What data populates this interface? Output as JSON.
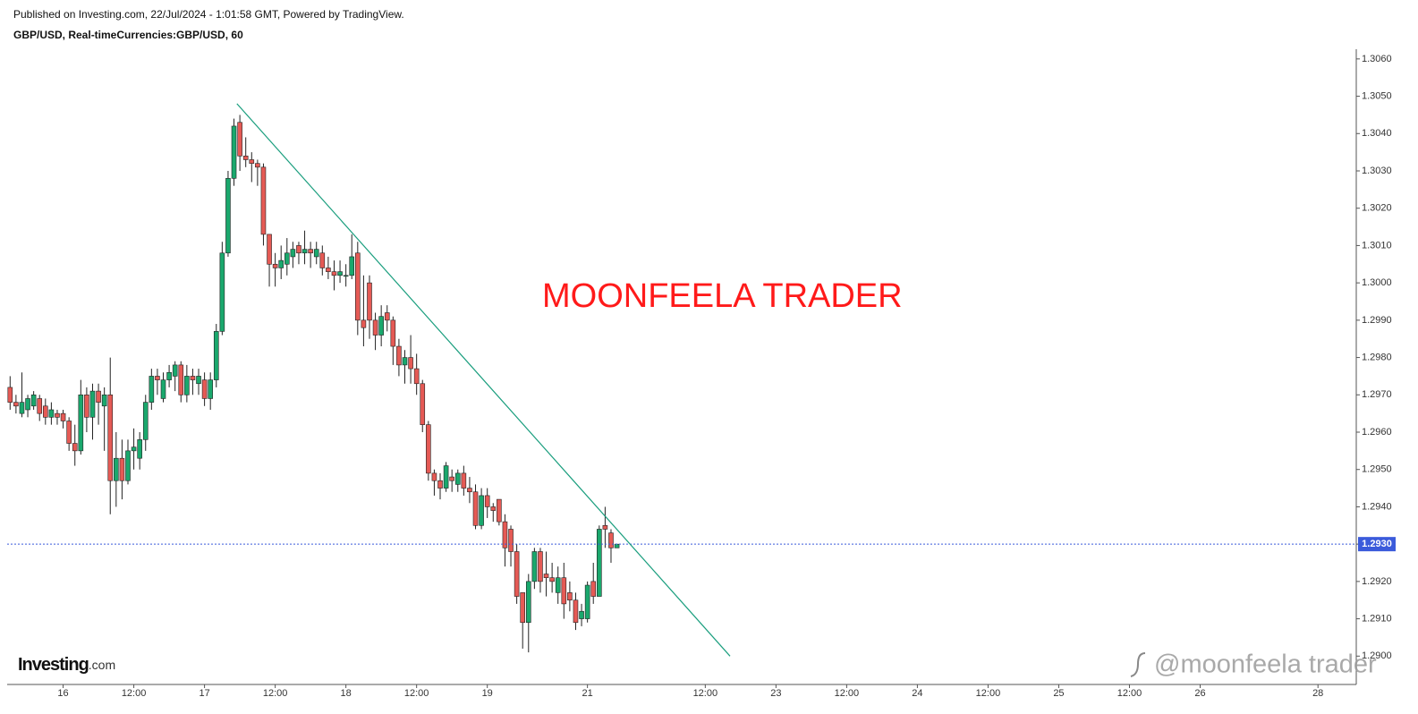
{
  "header": {
    "published": "Published on Investing.com, 22/Jul/2024 - 1:01:58 GMT, Powered by TradingView.",
    "symbol": "GBP/USD, Real-timeCurrencies:GBP/USD, 60"
  },
  "logo": {
    "name": "Investing",
    "suffix": ".com"
  },
  "watermark": "@moonfeela trader",
  "chart_data": {
    "type": "candlestick",
    "annotation": {
      "text": "MOONFEELA TRADER",
      "color": "#ff1a1a"
    },
    "trendline": {
      "x": [
        29.5,
        113.2
      ],
      "y": [
        1.3048,
        1.29
      ],
      "color": "#1a9e7e"
    },
    "price_line": {
      "value": 1.293,
      "label": "1.2930",
      "color": "#3b5bdb"
    },
    "up_color": "#1aa86d",
    "down_color": "#e55a55",
    "x": [
      -9,
      -8,
      -7,
      -6,
      -5,
      -4,
      -3,
      -2,
      -1,
      0,
      1,
      2,
      3,
      4,
      5,
      6,
      7,
      8,
      9,
      10,
      11,
      12,
      13,
      14,
      15,
      16,
      17,
      18,
      19,
      20,
      21,
      22,
      23,
      24,
      25,
      26,
      27,
      28,
      29,
      30,
      31,
      32,
      33,
      34,
      35,
      36,
      37,
      38,
      39,
      40,
      41,
      42,
      43,
      44,
      45,
      46,
      47,
      48,
      49,
      50,
      51,
      52,
      53,
      54,
      55,
      56,
      57,
      58,
      59,
      60,
      61,
      62,
      63,
      64,
      65,
      66,
      67,
      68,
      69,
      70,
      71,
      72,
      73,
      74,
      75,
      76,
      77,
      78,
      79,
      80,
      81,
      82,
      83,
      84,
      85,
      86,
      87,
      88,
      89,
      90,
      91,
      92,
      93,
      94
    ],
    "open": [
      1.2972,
      1.2968,
      1.2965,
      1.2966,
      1.2967,
      1.2969,
      1.2967,
      1.2964,
      1.2965,
      1.2965,
      1.2963,
      1.2957,
      1.2955,
      1.297,
      1.2964,
      1.2971,
      1.2967,
      1.297,
      1.2947,
      1.2953,
      1.2947,
      1.2955,
      1.2953,
      1.2958,
      1.2968,
      1.2975,
      1.2969,
      1.2974,
      1.2975,
      1.2978,
      1.297,
      1.2975,
      1.2973,
      1.2974,
      1.2969,
      1.2974,
      1.2987,
      1.3008,
      1.3028,
      1.3043,
      1.3034,
      1.3033,
      1.3032,
      1.3031,
      1.3013,
      1.3005,
      1.3004,
      1.3005,
      1.3007,
      1.301,
      1.3008,
      1.3009,
      1.3007,
      1.3008,
      1.3004,
      1.3003,
      1.3002,
      1.3002,
      1.3002,
      1.3008,
      1.299,
      1.3,
      1.299,
      1.2986,
      1.2992,
      1.299,
      1.2983,
      1.2978,
      1.298,
      1.2977,
      1.2973,
      1.2962,
      1.2949,
      1.2947,
      1.2945,
      1.2948,
      1.2946,
      1.2949,
      1.2945,
      1.2944,
      1.2935,
      1.2943,
      1.294,
      1.2942,
      1.2936,
      1.2934,
      1.2928,
      1.2917,
      1.2909,
      1.292,
      1.2928,
      1.2922,
      1.2921,
      1.2917,
      1.2921,
      1.2917,
      1.2915,
      1.291,
      1.291,
      1.292,
      1.2916,
      1.2935,
      1.2933,
      1.2929
    ],
    "high": [
      1.2975,
      1.297,
      1.2976,
      1.297,
      1.2971,
      1.297,
      1.2969,
      1.2968,
      1.2966,
      1.2966,
      1.2964,
      1.2962,
      1.2974,
      1.2972,
      1.2973,
      1.2973,
      1.2972,
      1.298,
      1.296,
      1.2958,
      1.2958,
      1.2961,
      1.296,
      1.297,
      1.2977,
      1.2977,
      1.2976,
      1.2978,
      1.2979,
      1.2979,
      1.2978,
      1.2977,
      1.2977,
      1.2976,
      1.2976,
      1.2989,
      1.3011,
      1.303,
      1.3044,
      1.3045,
      1.3039,
      1.3035,
      1.3033,
      1.3032,
      1.3013,
      1.3008,
      1.301,
      1.3012,
      1.3011,
      1.3011,
      1.3014,
      1.3011,
      1.3011,
      1.301,
      1.3007,
      1.3006,
      1.3006,
      1.3005,
      1.3013,
      1.3011,
      1.3002,
      1.3002,
      1.2992,
      1.2994,
      1.2994,
      1.2991,
      1.2985,
      1.2982,
      1.2986,
      1.2981,
      1.2974,
      1.2963,
      1.295,
      1.2949,
      1.2952,
      1.295,
      1.295,
      1.2951,
      1.2948,
      1.2946,
      1.2945,
      1.2945,
      1.2941,
      1.2942,
      1.2938,
      1.2935,
      1.293,
      1.2917,
      1.2922,
      1.2929,
      1.2929,
      1.2928,
      1.2925,
      1.2924,
      1.2925,
      1.292,
      1.2917,
      1.2914,
      1.292,
      1.2925,
      1.2935,
      1.294,
      1.2934,
      1.293
    ],
    "low": [
      1.2966,
      1.2965,
      1.2964,
      1.2964,
      1.2966,
      1.2963,
      1.2962,
      1.2962,
      1.2962,
      1.2961,
      1.2955,
      1.2951,
      1.2954,
      1.296,
      1.2958,
      1.2962,
      1.2955,
      1.2938,
      1.294,
      1.2942,
      1.2946,
      1.295,
      1.295,
      1.2955,
      1.2966,
      1.297,
      1.2968,
      1.2972,
      1.2971,
      1.2968,
      1.2968,
      1.297,
      1.297,
      1.2967,
      1.2966,
      1.2972,
      1.2986,
      1.3007,
      1.3026,
      1.303,
      1.3031,
      1.3027,
      1.3026,
      1.301,
      1.2999,
      1.2999,
      1.3001,
      1.3002,
      1.3004,
      1.3005,
      1.3005,
      1.3004,
      1.3005,
      1.3002,
      1.3001,
      1.2998,
      1.3,
      1.2999,
      1.3001,
      1.2986,
      1.2983,
      1.2985,
      1.2982,
      1.2983,
      1.2987,
      1.2978,
      1.2975,
      1.2973,
      1.2973,
      1.297,
      1.296,
      1.2947,
      1.2943,
      1.2942,
      1.2944,
      1.2944,
      1.2944,
      1.2943,
      1.2941,
      1.2934,
      1.2934,
      1.2937,
      1.2936,
      1.2935,
      1.2924,
      1.2924,
      1.2914,
      1.2902,
      1.2901,
      1.2918,
      1.2917,
      1.2916,
      1.2917,
      1.2914,
      1.291,
      1.2912,
      1.2907,
      1.2908,
      1.2909,
      1.2914,
      1.2916,
      1.2929,
      1.2925,
      1.2929
    ],
    "close": [
      1.2968,
      1.2967,
      1.2968,
      1.2969,
      1.297,
      1.2965,
      1.2964,
      1.2966,
      1.2964,
      1.2963,
      1.2957,
      1.2955,
      1.297,
      1.2964,
      1.2971,
      1.2968,
      1.297,
      1.2947,
      1.2953,
      1.2947,
      1.2955,
      1.2956,
      1.2958,
      1.2968,
      1.2975,
      1.2974,
      1.2974,
      1.2976,
      1.2978,
      1.297,
      1.2975,
      1.2974,
      1.2975,
      1.2969,
      1.2974,
      1.2987,
      1.3008,
      1.3028,
      1.3042,
      1.3034,
      1.3033,
      1.3032,
      1.3031,
      1.3013,
      1.3005,
      1.3004,
      1.3006,
      1.3008,
      1.3009,
      1.3008,
      1.3009,
      1.3008,
      1.3009,
      1.3004,
      1.3003,
      1.3002,
      1.3003,
      1.3002,
      1.3007,
      1.299,
      1.2988,
      1.299,
      1.2986,
      1.2991,
      1.299,
      1.2983,
      1.2978,
      1.298,
      1.2977,
      1.2973,
      1.2962,
      1.2949,
      1.2947,
      1.2945,
      1.2951,
      1.2947,
      1.2949,
      1.2945,
      1.2944,
      1.2935,
      1.2943,
      1.294,
      1.2939,
      1.2936,
      1.2929,
      1.2928,
      1.2916,
      1.2909,
      1.292,
      1.2928,
      1.292,
      1.2921,
      1.292,
      1.2921,
      1.2914,
      1.2915,
      1.2909,
      1.2912,
      1.2919,
      1.2916,
      1.2934,
      1.2934,
      1.2929,
      1.293
    ],
    "xlim": [
      -9.5,
      219.5
    ],
    "xticks": [
      {
        "value": 0,
        "label": "16"
      },
      {
        "value": 12,
        "label": "12:00"
      },
      {
        "value": 24,
        "label": "17"
      },
      {
        "value": 36,
        "label": "12:00"
      },
      {
        "value": 48,
        "label": "18"
      },
      {
        "value": 60,
        "label": "12:00"
      },
      {
        "value": 72,
        "label": "19"
      },
      {
        "value": 89,
        "label": "21"
      },
      {
        "value": 109,
        "label": "12:00"
      },
      {
        "value": 121,
        "label": "23"
      },
      {
        "value": 133,
        "label": "12:00"
      },
      {
        "value": 145,
        "label": "24"
      },
      {
        "value": 157,
        "label": "12:00"
      },
      {
        "value": 169,
        "label": "25"
      },
      {
        "value": 181,
        "label": "12:00"
      },
      {
        "value": 193,
        "label": "26"
      },
      {
        "value": 213,
        "label": "28"
      }
    ],
    "ylim": [
      1.28924,
      1.30626
    ],
    "yticks": [
      {
        "value": 1.29,
        "label": "1.2900"
      },
      {
        "value": 1.291,
        "label": "1.2910"
      },
      {
        "value": 1.292,
        "label": "1.2920"
      },
      {
        "value": 1.293,
        "label": "1.2930"
      },
      {
        "value": 1.294,
        "label": "1.2940"
      },
      {
        "value": 1.295,
        "label": "1.2950"
      },
      {
        "value": 1.296,
        "label": "1.2960"
      },
      {
        "value": 1.297,
        "label": "1.2970"
      },
      {
        "value": 1.298,
        "label": "1.2980"
      },
      {
        "value": 1.299,
        "label": "1.2990"
      },
      {
        "value": 1.3,
        "label": "1.3000"
      },
      {
        "value": 1.301,
        "label": "1.3010"
      },
      {
        "value": 1.302,
        "label": "1.3020"
      },
      {
        "value": 1.303,
        "label": "1.3030"
      },
      {
        "value": 1.304,
        "label": "1.3040"
      },
      {
        "value": 1.305,
        "label": "1.3050"
      },
      {
        "value": 1.306,
        "label": "1.3060"
      }
    ]
  }
}
